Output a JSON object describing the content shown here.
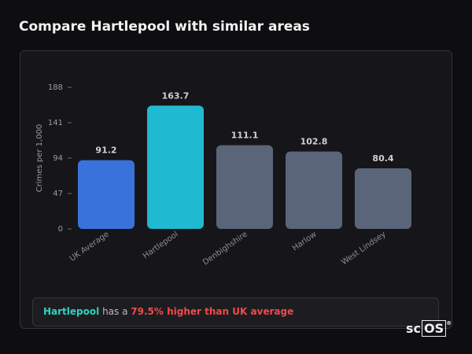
{
  "header": {
    "title": "Compare Hartlepool with similar areas"
  },
  "chart_data": {
    "type": "bar",
    "y_label": "Crimes per 1,000",
    "categories": [
      "UK Average",
      "Hartlepool",
      "Denbighshire",
      "Harlow",
      "West Lindsey"
    ],
    "values": [
      91.2,
      163.7,
      111.1,
      102.8,
      80.4
    ],
    "colors": [
      "#3a72dc",
      "#1fb9d1",
      "#5b6579",
      "#5b6579",
      "#5b6579"
    ],
    "ylim": [
      0,
      188
    ],
    "yticks": [
      0,
      47,
      94,
      141,
      188
    ]
  },
  "summary": {
    "area": "Hartlepool",
    "text": "has a",
    "highlight": "79.5% higher than UK average"
  },
  "logo": {
    "text": "sc",
    "boxed": "OS",
    "mark": "®"
  }
}
